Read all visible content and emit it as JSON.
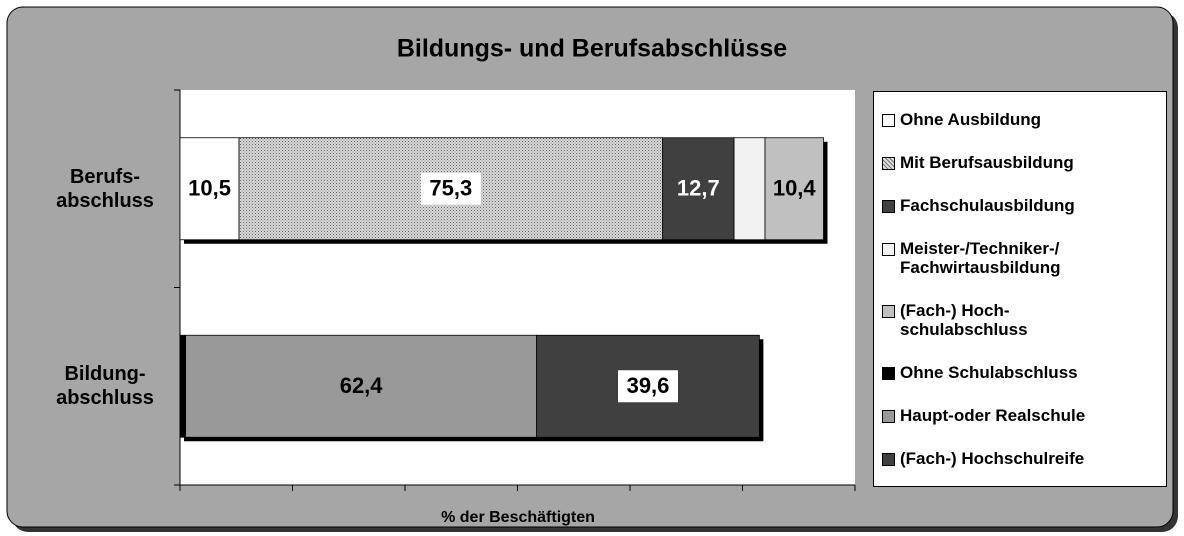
{
  "chart_data": {
    "type": "stacked_barh",
    "title": "Bildungs- und Berufsabschlüsse",
    "x_label": "% der Beschäftigten",
    "categories": [
      "Berufs-\nabschluss",
      "Bildung-\nabschluss"
    ],
    "xlim": [
      0,
      120
    ],
    "xticks": [
      0,
      20,
      40,
      60,
      80,
      100,
      120
    ],
    "series": [
      {
        "name": "Ohne Ausbildung",
        "color": "#ffffff",
        "values": [
          10.5,
          null
        ],
        "value_labels": [
          "10,5",
          null
        ]
      },
      {
        "name": "Mit Berufsausbildung",
        "color": "#c8c8c8",
        "pattern": "dots",
        "values": [
          75.3,
          null
        ],
        "value_labels": [
          "75,3",
          null
        ]
      },
      {
        "name": "Fachschulausbildung",
        "color": "#404040",
        "values": [
          12.7,
          null
        ],
        "value_labels": [
          "12,7",
          null
        ]
      },
      {
        "name": "Meister-/Techniker-/\nFachwirtausbildung",
        "color": "#f2f2f2",
        "values": [
          5.5,
          null
        ]
      },
      {
        "name": "(Fach-) Hoch-\nschulabschluss",
        "color": "#c0c0c0",
        "values": [
          10.4,
          null
        ],
        "value_labels": [
          "10,4",
          null
        ]
      },
      {
        "name": "Ohne Schulabschluss",
        "color": "#000000",
        "values": [
          null,
          1.0
        ]
      },
      {
        "name": "Haupt-oder Realschule",
        "color": "#999999",
        "values": [
          null,
          62.4
        ],
        "value_labels": [
          null,
          "62,4"
        ]
      },
      {
        "name": "(Fach-) Hochschulreife",
        "color": "#404040",
        "values": [
          null,
          39.6
        ],
        "value_labels": [
          null,
          "39,6"
        ]
      }
    ]
  }
}
